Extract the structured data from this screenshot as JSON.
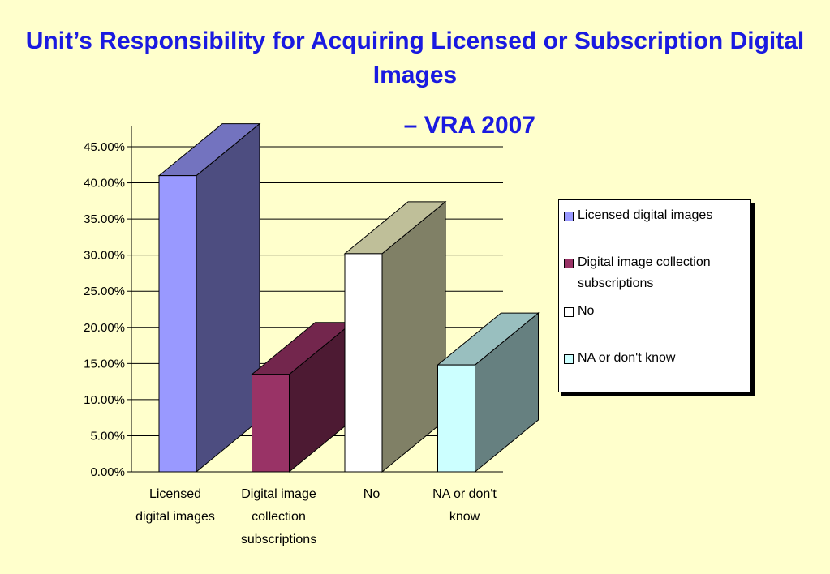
{
  "title": "Unit’s Responsibility for Acquiring Licensed or Subscription Digital Images",
  "subtitle": "– VRA 2007",
  "chart_data": {
    "type": "bar",
    "title": "Unit’s Responsibility for Acquiring Licensed or Subscription Digital Images – VRA 2007",
    "categories": [
      "Licensed digital images",
      "Digital image collection subscriptions",
      "No",
      "NA or don't know"
    ],
    "category_labels": [
      [
        "Licensed",
        "digital images"
      ],
      [
        "Digital image",
        "collection",
        "subscriptions"
      ],
      [
        "No"
      ],
      [
        "NA or don't",
        "know"
      ]
    ],
    "values": [
      41.0,
      13.5,
      30.2,
      14.8
    ],
    "ylim": [
      0,
      45
    ],
    "yticks": [
      "0.00%",
      "5.00%",
      "10.00%",
      "15.00%",
      "20.00%",
      "25.00%",
      "30.00%",
      "35.00%",
      "40.00%",
      "45.00%"
    ],
    "grid": true,
    "legend_position": "right",
    "series": [
      {
        "name": "Licensed digital images",
        "color": "#9999ff",
        "side": "#4d4d80",
        "top": "#7373bf"
      },
      {
        "name": "Digital image collection subscriptions",
        "color": "#993366",
        "side": "#4d1a33",
        "top": "#73264d"
      },
      {
        "name": "No",
        "color": "#ffffff",
        "side": "#808066",
        "top": "#bfbf99"
      },
      {
        "name": "NA or don't know",
        "color": "#ccffff",
        "side": "#668080",
        "top": "#99bfbf"
      }
    ]
  }
}
